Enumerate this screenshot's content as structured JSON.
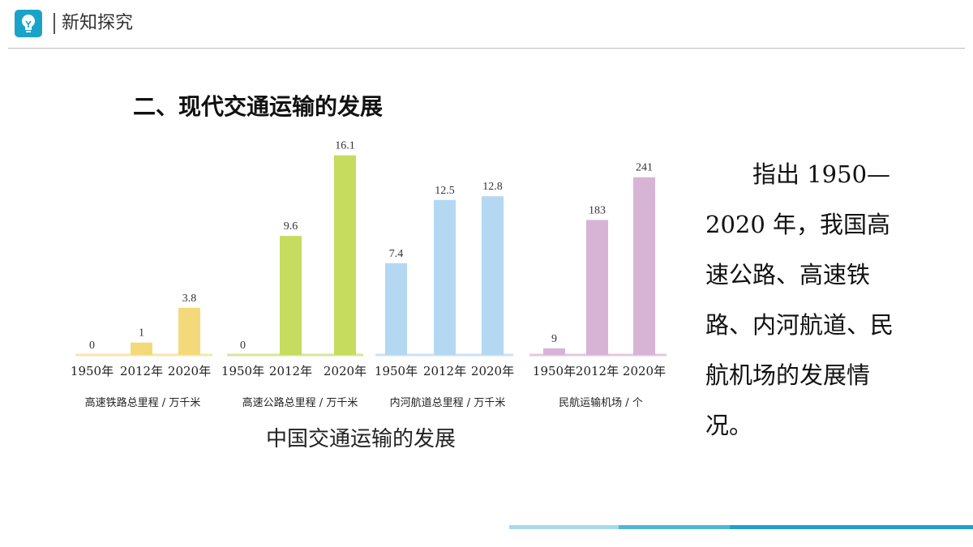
{
  "header": {
    "title": "新知探究",
    "icon": "lightbulb-icon",
    "icon_color": "#1aa3c8"
  },
  "section_title": "二、现代交通运输的发展",
  "caption": "中国交通运输的发展",
  "question_text": "指出 1950—2020 年，我国高速公路、高速铁路、内河航道、民航机场的发展情况。",
  "chart_data": [
    {
      "type": "bar",
      "title": "高速铁路总里程 / 万千米",
      "categories": [
        "1950年",
        "2012年",
        "2020年"
      ],
      "values": [
        0,
        1,
        3.8
      ],
      "labels": [
        "0",
        "1",
        "3.8"
      ],
      "color": "#f3d97a",
      "baseline_color": "#f7e7a8"
    },
    {
      "type": "bar",
      "title": "高速公路总里程 / 万千米",
      "categories": [
        "1950年",
        "2012年",
        "2020年"
      ],
      "values": [
        0,
        9.6,
        16.1
      ],
      "labels": [
        "0",
        "9.6",
        "16.1"
      ],
      "color": "#c5dc5f",
      "baseline_color": "#d6e69a"
    },
    {
      "type": "bar",
      "title": "内河航道总里程 / 万千米",
      "categories": [
        "1950年",
        "2012年",
        "2020年"
      ],
      "values": [
        7.4,
        12.5,
        12.8
      ],
      "labels": [
        "7.4",
        "12.5",
        "12.8"
      ],
      "color": "#b4d8f2",
      "baseline_color": "#c9e3f6"
    },
    {
      "type": "bar",
      "title": "民航运输机场 / 个",
      "categories": [
        "1950年",
        "2012年",
        "2020年"
      ],
      "values": [
        9,
        183,
        241
      ],
      "labels": [
        "9",
        "183",
        "241"
      ],
      "color": "#d7b4d6",
      "baseline_color": "#e2c8e1"
    }
  ],
  "bottom_bar_colors": [
    "#a7d9ec",
    "#4fb6d9",
    "#1f9fcf"
  ]
}
